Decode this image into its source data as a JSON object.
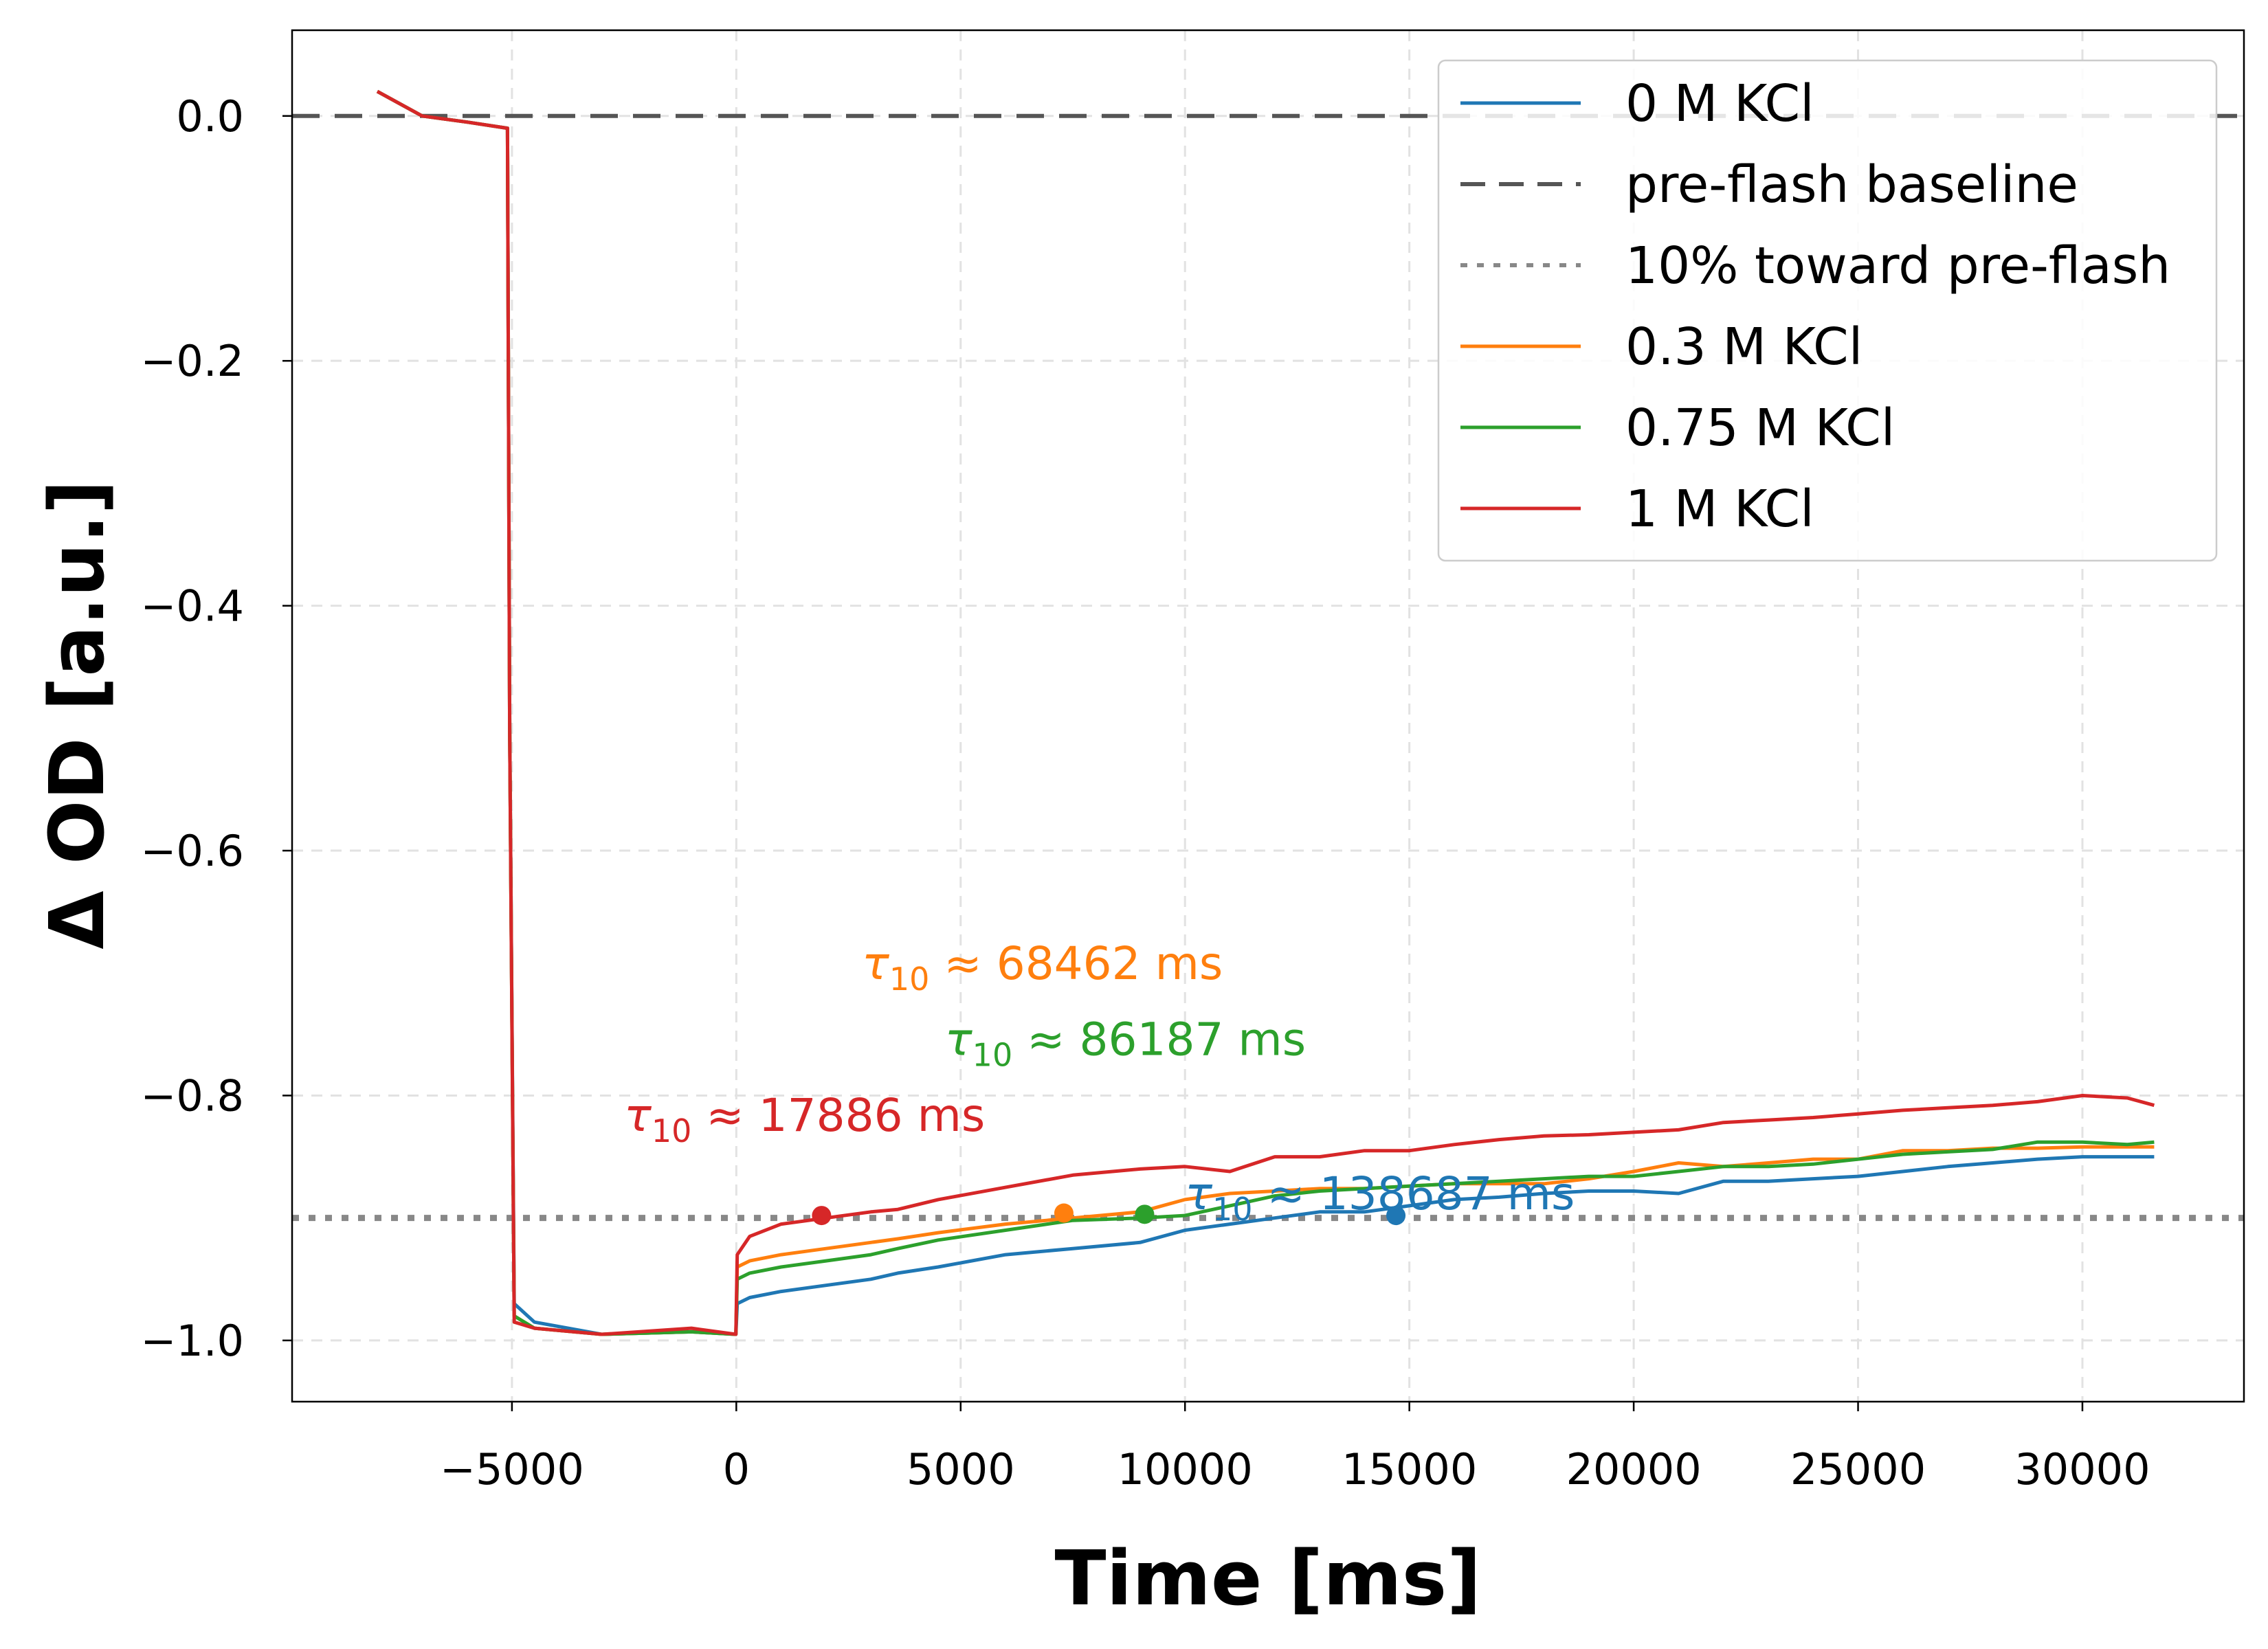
{
  "chart_data": {
    "type": "line",
    "xlabel": "Time [ms]",
    "ylabel": "Δ OD [a.u.]",
    "xlim": [
      -9900,
      33600
    ],
    "ylim": [
      -1.05,
      0.07
    ],
    "xticks": [
      -5000,
      0,
      5000,
      10000,
      15000,
      20000,
      25000,
      30000
    ],
    "xtick_labels": [
      "−5000",
      "0",
      "5000",
      "10000",
      "15000",
      "20000",
      "25000",
      "30000"
    ],
    "yticks": [
      0.0,
      -0.2,
      -0.4,
      -0.6,
      -0.8,
      -1.0
    ],
    "ytick_labels": [
      "0.0",
      "−0.2",
      "−0.4",
      "−0.6",
      "−0.8",
      "−1.0"
    ],
    "grid": true,
    "legend_position": "top-right",
    "legend": [
      {
        "label": "0 M KCl",
        "color": "#1f77b4",
        "style": "solid"
      },
      {
        "label": "pre-flash baseline",
        "color": "#555555",
        "style": "dashed"
      },
      {
        "label": "10% toward pre-flash",
        "color": "#888888",
        "style": "dotted"
      },
      {
        "label": "0.3 M KCl",
        "color": "#ff7f0e",
        "style": "solid"
      },
      {
        "label": "0.75 M KCl",
        "color": "#2ca02c",
        "style": "solid"
      },
      {
        "label": "1 M KCl",
        "color": "#d62728",
        "style": "solid"
      }
    ],
    "reference_lines": [
      {
        "name": "pre-flash baseline",
        "y": 0.0,
        "color": "#555555",
        "style": "dashed"
      },
      {
        "name": "10% toward pre-flash",
        "y": -0.9,
        "color": "#888888",
        "style": "dotted"
      }
    ],
    "series": [
      {
        "name": "0 M KCl",
        "color": "#1f77b4",
        "points": [
          [
            -8000,
            0.02
          ],
          [
            -7000,
            0.0
          ],
          [
            -6000,
            -0.005
          ],
          [
            -5100,
            -0.01
          ],
          [
            -5050,
            -0.5
          ],
          [
            -4950,
            -0.97
          ],
          [
            -4500,
            -0.985
          ],
          [
            -3000,
            -0.995
          ],
          [
            -1000,
            -0.993
          ],
          [
            -10,
            -0.995
          ],
          [
            20,
            -0.97
          ],
          [
            300,
            -0.965
          ],
          [
            1000,
            -0.96
          ],
          [
            2000,
            -0.955
          ],
          [
            3000,
            -0.95
          ],
          [
            3600,
            -0.945
          ],
          [
            4500,
            -0.94
          ],
          [
            6000,
            -0.93
          ],
          [
            7500,
            -0.925
          ],
          [
            9000,
            -0.92
          ],
          [
            10000,
            -0.91
          ],
          [
            11000,
            -0.905
          ],
          [
            12000,
            -0.9
          ],
          [
            13000,
            -0.895
          ],
          [
            14000,
            -0.895
          ],
          [
            15000,
            -0.89
          ],
          [
            16000,
            -0.885
          ],
          [
            17000,
            -0.883
          ],
          [
            18000,
            -0.88
          ],
          [
            19000,
            -0.878
          ],
          [
            20000,
            -0.878
          ],
          [
            21000,
            -0.88
          ],
          [
            22000,
            -0.87
          ],
          [
            23000,
            -0.87
          ],
          [
            24000,
            -0.868
          ],
          [
            25000,
            -0.866
          ],
          [
            26000,
            -0.862
          ],
          [
            27000,
            -0.858
          ],
          [
            28000,
            -0.855
          ],
          [
            29000,
            -0.852
          ],
          [
            30000,
            -0.85
          ],
          [
            31000,
            -0.85
          ],
          [
            31600,
            -0.85
          ]
        ]
      },
      {
        "name": "0.3 M KCl",
        "color": "#ff7f0e",
        "points": [
          [
            -8000,
            0.02
          ],
          [
            -7000,
            0.0
          ],
          [
            -6000,
            -0.005
          ],
          [
            -5100,
            -0.01
          ],
          [
            -5050,
            -0.5
          ],
          [
            -4950,
            -0.98
          ],
          [
            -4500,
            -0.99
          ],
          [
            -3000,
            -0.995
          ],
          [
            -1000,
            -0.993
          ],
          [
            -10,
            -0.995
          ],
          [
            20,
            -0.94
          ],
          [
            300,
            -0.935
          ],
          [
            1000,
            -0.93
          ],
          [
            2000,
            -0.925
          ],
          [
            3000,
            -0.92
          ],
          [
            3600,
            -0.917
          ],
          [
            4500,
            -0.912
          ],
          [
            6000,
            -0.905
          ],
          [
            7500,
            -0.9
          ],
          [
            9000,
            -0.895
          ],
          [
            10000,
            -0.885
          ],
          [
            11000,
            -0.88
          ],
          [
            12000,
            -0.878
          ],
          [
            13000,
            -0.876
          ],
          [
            14000,
            -0.876
          ],
          [
            15000,
            -0.874
          ],
          [
            16000,
            -0.872
          ],
          [
            17000,
            -0.872
          ],
          [
            18000,
            -0.872
          ],
          [
            19000,
            -0.868
          ],
          [
            20000,
            -0.862
          ],
          [
            21000,
            -0.855
          ],
          [
            22000,
            -0.858
          ],
          [
            23000,
            -0.855
          ],
          [
            24000,
            -0.852
          ],
          [
            25000,
            -0.852
          ],
          [
            26000,
            -0.845
          ],
          [
            27000,
            -0.845
          ],
          [
            28000,
            -0.843
          ],
          [
            29000,
            -0.843
          ],
          [
            30000,
            -0.842
          ],
          [
            31000,
            -0.842
          ],
          [
            31600,
            -0.842
          ]
        ]
      },
      {
        "name": "0.75 M KCl",
        "color": "#2ca02c",
        "points": [
          [
            -8000,
            0.02
          ],
          [
            -7000,
            0.0
          ],
          [
            -6000,
            -0.005
          ],
          [
            -5100,
            -0.01
          ],
          [
            -5050,
            -0.5
          ],
          [
            -4950,
            -0.98
          ],
          [
            -4500,
            -0.99
          ],
          [
            -3000,
            -0.995
          ],
          [
            -1000,
            -0.993
          ],
          [
            -10,
            -0.995
          ],
          [
            20,
            -0.95
          ],
          [
            300,
            -0.945
          ],
          [
            1000,
            -0.94
          ],
          [
            2000,
            -0.935
          ],
          [
            3000,
            -0.93
          ],
          [
            3600,
            -0.925
          ],
          [
            4500,
            -0.918
          ],
          [
            6000,
            -0.91
          ],
          [
            7500,
            -0.902
          ],
          [
            9000,
            -0.9
          ],
          [
            10000,
            -0.898
          ],
          [
            11000,
            -0.89
          ],
          [
            12000,
            -0.882
          ],
          [
            13000,
            -0.878
          ],
          [
            14000,
            -0.876
          ],
          [
            15000,
            -0.874
          ],
          [
            16000,
            -0.872
          ],
          [
            17000,
            -0.87
          ],
          [
            18000,
            -0.868
          ],
          [
            19000,
            -0.866
          ],
          [
            20000,
            -0.866
          ],
          [
            21000,
            -0.862
          ],
          [
            22000,
            -0.858
          ],
          [
            23000,
            -0.858
          ],
          [
            24000,
            -0.856
          ],
          [
            25000,
            -0.852
          ],
          [
            26000,
            -0.848
          ],
          [
            27000,
            -0.846
          ],
          [
            28000,
            -0.844
          ],
          [
            29000,
            -0.838
          ],
          [
            30000,
            -0.838
          ],
          [
            31000,
            -0.84
          ],
          [
            31600,
            -0.838
          ]
        ]
      },
      {
        "name": "1 M KCl",
        "color": "#d62728",
        "points": [
          [
            -8000,
            0.02
          ],
          [
            -7000,
            0.0
          ],
          [
            -6000,
            -0.005
          ],
          [
            -5100,
            -0.01
          ],
          [
            -5050,
            -0.5
          ],
          [
            -4950,
            -0.985
          ],
          [
            -4500,
            -0.99
          ],
          [
            -3000,
            -0.995
          ],
          [
            -1000,
            -0.99
          ],
          [
            -10,
            -0.995
          ],
          [
            20,
            -0.93
          ],
          [
            300,
            -0.915
          ],
          [
            1000,
            -0.905
          ],
          [
            2000,
            -0.9
          ],
          [
            3000,
            -0.895
          ],
          [
            3600,
            -0.893
          ],
          [
            4500,
            -0.885
          ],
          [
            6000,
            -0.875
          ],
          [
            7500,
            -0.865
          ],
          [
            9000,
            -0.86
          ],
          [
            10000,
            -0.858
          ],
          [
            11000,
            -0.862
          ],
          [
            12000,
            -0.85
          ],
          [
            13000,
            -0.85
          ],
          [
            14000,
            -0.845
          ],
          [
            15000,
            -0.845
          ],
          [
            16000,
            -0.84
          ],
          [
            17000,
            -0.836
          ],
          [
            18000,
            -0.833
          ],
          [
            19000,
            -0.832
          ],
          [
            20000,
            -0.83
          ],
          [
            21000,
            -0.828
          ],
          [
            22000,
            -0.822
          ],
          [
            23000,
            -0.82
          ],
          [
            24000,
            -0.818
          ],
          [
            25000,
            -0.815
          ],
          [
            26000,
            -0.812
          ],
          [
            27000,
            -0.81
          ],
          [
            28000,
            -0.808
          ],
          [
            29000,
            -0.805
          ],
          [
            30000,
            -0.8
          ],
          [
            31000,
            -0.802
          ],
          [
            31600,
            -0.808
          ]
        ]
      }
    ],
    "markers": [
      {
        "series": "1 M KCl",
        "x": 1900,
        "y": -0.898,
        "color": "#d62728"
      },
      {
        "series": "0.3 M KCl",
        "x": 7300,
        "y": -0.896,
        "color": "#ff7f0e"
      },
      {
        "series": "0.75 M KCl",
        "x": 9100,
        "y": -0.897,
        "color": "#2ca02c"
      },
      {
        "series": "0 M KCl",
        "x": 14700,
        "y": -0.898,
        "color": "#1f77b4"
      }
    ],
    "annotations": [
      {
        "prefix": "τ",
        "sub": "10",
        "text": " ≈ 68462 ms",
        "x": 2800,
        "y": -0.705,
        "color": "#ff7f0e"
      },
      {
        "prefix": "τ",
        "sub": "10",
        "text": " ≈ 86187 ms",
        "x": 4650,
        "y": -0.767,
        "color": "#2ca02c"
      },
      {
        "prefix": "τ",
        "sub": "10",
        "text": " ≈ 17886 ms",
        "x": -2500,
        "y": -0.829,
        "color": "#d62728"
      },
      {
        "prefix": "τ",
        "sub": "10",
        "text": " ≈ 138687 ms",
        "x": 10000,
        "y": -0.893,
        "color": "#1f77b4"
      }
    ]
  }
}
